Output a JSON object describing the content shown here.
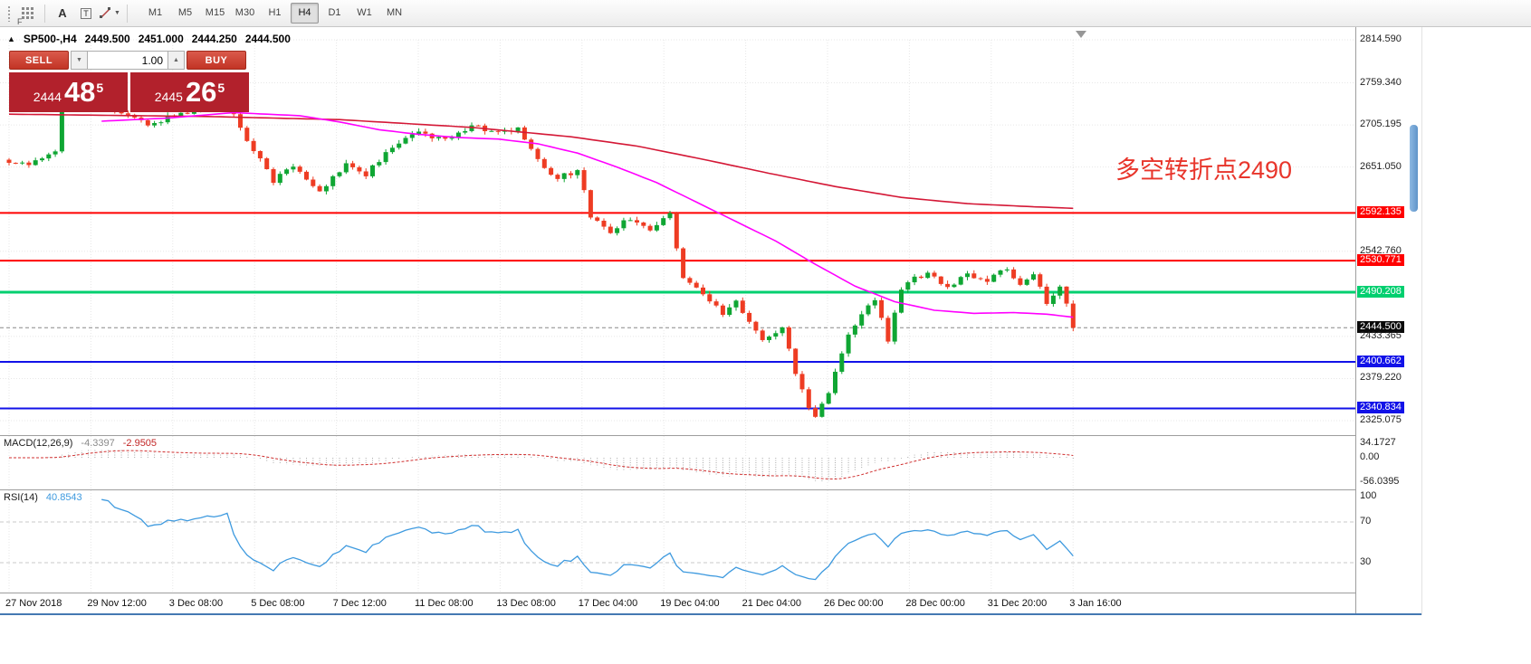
{
  "toolbar": {
    "f_label": "F",
    "text_tool": "A",
    "textbox_tool": "T",
    "timeframes": [
      {
        "label": "M1"
      },
      {
        "label": "M5"
      },
      {
        "label": "M15"
      },
      {
        "label": "M30"
      },
      {
        "label": "H1"
      },
      {
        "label": "H4",
        "active": true
      },
      {
        "label": "D1"
      },
      {
        "label": "W1"
      },
      {
        "label": "MN"
      }
    ]
  },
  "chart": {
    "header": {
      "symbol": "SP500-,H4",
      "open": "2449.500",
      "high": "2451.000",
      "low": "2444.250",
      "close": "2444.500"
    },
    "trade_panel": {
      "sell_label": "SELL",
      "buy_label": "BUY",
      "volume": "1.00",
      "bid_head": "2444",
      "bid_main": "48",
      "bid_pip": "5",
      "ask_head": "2445",
      "ask_main": "26",
      "ask_pip": "5"
    },
    "annotation": {
      "text": "多空转折点2490",
      "color": "#e8352b"
    }
  },
  "chart_data": {
    "type": "candlestick",
    "symbol": "SP500-",
    "timeframe": "H4",
    "bars": 162,
    "bar_spacing_px": 7.3,
    "tick_spacing_px": 90.4,
    "price_range": [
      2325.075,
      2814.59
    ],
    "current_bar": {
      "open": 2449.5,
      "high": 2451.0,
      "low": 2444.25,
      "close": 2444.5
    },
    "bid": 2444.485,
    "ask": 2445.265,
    "last_price": 2444.5,
    "close_waypoints": [
      [
        0,
        2660
      ],
      [
        3,
        2652
      ],
      [
        5,
        2662
      ],
      [
        7,
        2672
      ],
      [
        8,
        2726
      ],
      [
        12,
        2732
      ],
      [
        17,
        2720
      ],
      [
        21,
        2706
      ],
      [
        26,
        2720
      ],
      [
        30,
        2728
      ],
      [
        33,
        2736
      ],
      [
        36,
        2688
      ],
      [
        40,
        2634
      ],
      [
        43,
        2652
      ],
      [
        47,
        2618
      ],
      [
        51,
        2656
      ],
      [
        54,
        2642
      ],
      [
        58,
        2676
      ],
      [
        62,
        2696
      ],
      [
        66,
        2684
      ],
      [
        70,
        2706
      ],
      [
        74,
        2694
      ],
      [
        77,
        2700
      ],
      [
        80,
        2658
      ],
      [
        83,
        2636
      ],
      [
        86,
        2648
      ],
      [
        88,
        2588
      ],
      [
        91,
        2568
      ],
      [
        94,
        2586
      ],
      [
        97,
        2572
      ],
      [
        100,
        2590
      ],
      [
        102,
        2508
      ],
      [
        105,
        2488
      ],
      [
        108,
        2462
      ],
      [
        110,
        2478
      ],
      [
        114,
        2428
      ],
      [
        117,
        2444
      ],
      [
        119,
        2388
      ],
      [
        121,
        2344
      ],
      [
        122,
        2332
      ],
      [
        124,
        2362
      ],
      [
        126,
        2414
      ],
      [
        127,
        2436
      ],
      [
        129,
        2462
      ],
      [
        131,
        2482
      ],
      [
        133,
        2428
      ],
      [
        135,
        2494
      ],
      [
        137,
        2508
      ],
      [
        139,
        2516
      ],
      [
        142,
        2498
      ],
      [
        145,
        2512
      ],
      [
        148,
        2504
      ],
      [
        151,
        2520
      ],
      [
        153,
        2502
      ],
      [
        155,
        2514
      ],
      [
        157,
        2478
      ],
      [
        159,
        2500
      ],
      [
        161,
        2444.5
      ]
    ],
    "ma_fast": {
      "name": "fast-ma",
      "color": "#ff00ff",
      "start": 14,
      "waypoints": [
        [
          14,
          2710
        ],
        [
          24,
          2714
        ],
        [
          34,
          2721
        ],
        [
          44,
          2717
        ],
        [
          50,
          2709
        ],
        [
          56,
          2699
        ],
        [
          62,
          2693
        ],
        [
          68,
          2689
        ],
        [
          74,
          2687
        ],
        [
          80,
          2681
        ],
        [
          86,
          2669
        ],
        [
          92,
          2651
        ],
        [
          98,
          2631
        ],
        [
          104,
          2606
        ],
        [
          110,
          2581
        ],
        [
          116,
          2556
        ],
        [
          122,
          2526
        ],
        [
          128,
          2498
        ],
        [
          134,
          2478
        ],
        [
          140,
          2467
        ],
        [
          146,
          2463
        ],
        [
          152,
          2464
        ],
        [
          157,
          2462
        ],
        [
          161,
          2458
        ]
      ]
    },
    "ma_slow": {
      "name": "slow-ma",
      "color": "#d41836",
      "start": 0,
      "waypoints": [
        [
          0,
          2719
        ],
        [
          30,
          2716
        ],
        [
          50,
          2712
        ],
        [
          70,
          2702
        ],
        [
          85,
          2690
        ],
        [
          95,
          2678
        ],
        [
          105,
          2661
        ],
        [
          115,
          2643
        ],
        [
          125,
          2626
        ],
        [
          135,
          2612
        ],
        [
          145,
          2604
        ],
        [
          155,
          2600
        ],
        [
          161,
          2598
        ]
      ]
    },
    "levels": [
      {
        "price": 2592.135,
        "color": "#ff0000",
        "width": 2
      },
      {
        "price": 2530.771,
        "color": "#ff0000",
        "width": 2
      },
      {
        "price": 2490.208,
        "color": "#00cf6f",
        "width": 3
      },
      {
        "price": 2400.662,
        "color": "#1212e8",
        "width": 2
      },
      {
        "price": 2340.834,
        "color": "#1212e8",
        "width": 2
      }
    ],
    "colors": {
      "up": "#0fa633",
      "down": "#ee3c23",
      "rsi": "#3e9adf",
      "macd_hist": "#a9a9a9",
      "macd_signal": "#d03030"
    },
    "price_axis_labels": [
      {
        "text": "2814.590",
        "price": 2814.59,
        "style": "plain"
      },
      {
        "text": "2759.340",
        "price": 2759.34,
        "style": "plain"
      },
      {
        "text": "2705.195",
        "price": 2705.195,
        "style": "plain"
      },
      {
        "text": "2651.050",
        "price": 2651.05,
        "style": "plain"
      },
      {
        "text": "2592.135",
        "price": 2592.135,
        "style": "badge",
        "bg": "#ff0000",
        "fg": "#ffffff"
      },
      {
        "text": "2542.760",
        "price": 2542.76,
        "style": "plain"
      },
      {
        "text": "2530.771",
        "price": 2530.771,
        "style": "badge",
        "bg": "#ff0000",
        "fg": "#ffffff"
      },
      {
        "text": "2490.208",
        "price": 2490.208,
        "style": "badge",
        "bg": "#00cf6f",
        "fg": "#ffffff"
      },
      {
        "text": "2444.500",
        "price": 2444.5,
        "style": "badge",
        "bg": "#0a0a0a",
        "fg": "#ffffff"
      },
      {
        "text": "2433.365",
        "price": 2433.365,
        "style": "plain"
      },
      {
        "text": "2400.662",
        "price": 2400.662,
        "style": "badge",
        "bg": "#1212e8",
        "fg": "#ffffff"
      },
      {
        "text": "2379.220",
        "price": 2379.22,
        "style": "plain"
      },
      {
        "text": "2340.834",
        "price": 2340.834,
        "style": "badge",
        "bg": "#1212e8",
        "fg": "#ffffff"
      },
      {
        "text": "2325.075",
        "price": 2325.075,
        "style": "plain"
      }
    ],
    "time_labels": [
      "27 Nov 2018",
      "29 Nov 12:00",
      "3 Dec 08:00",
      "5 Dec 08:00",
      "7 Dec 12:00",
      "11 Dec 08:00",
      "13 Dec 08:00",
      "17 Dec 04:00",
      "19 Dec 04:00",
      "21 Dec 04:00",
      "26 Dec 00:00",
      "28 Dec 00:00",
      "31 Dec 20:00",
      "3 Jan 16:00"
    ],
    "indicators": {
      "macd": {
        "name": "MACD(12,26,9)",
        "value_main": "-4.3397",
        "value_signal": "-2.9505",
        "axis": [
          {
            "text": "34.1727",
            "value": 34.1727
          },
          {
            "text": "0.00",
            "value": 0
          },
          {
            "text": "-56.0395",
            "value": -56.0395
          }
        ]
      },
      "rsi": {
        "name": "RSI(14)",
        "value": "40.8543",
        "levels": [
          70,
          30
        ],
        "axis": [
          {
            "text": "100",
            "value": 100
          },
          {
            "text": "70",
            "value": 70
          },
          {
            "text": "30",
            "value": 30
          }
        ]
      }
    }
  }
}
